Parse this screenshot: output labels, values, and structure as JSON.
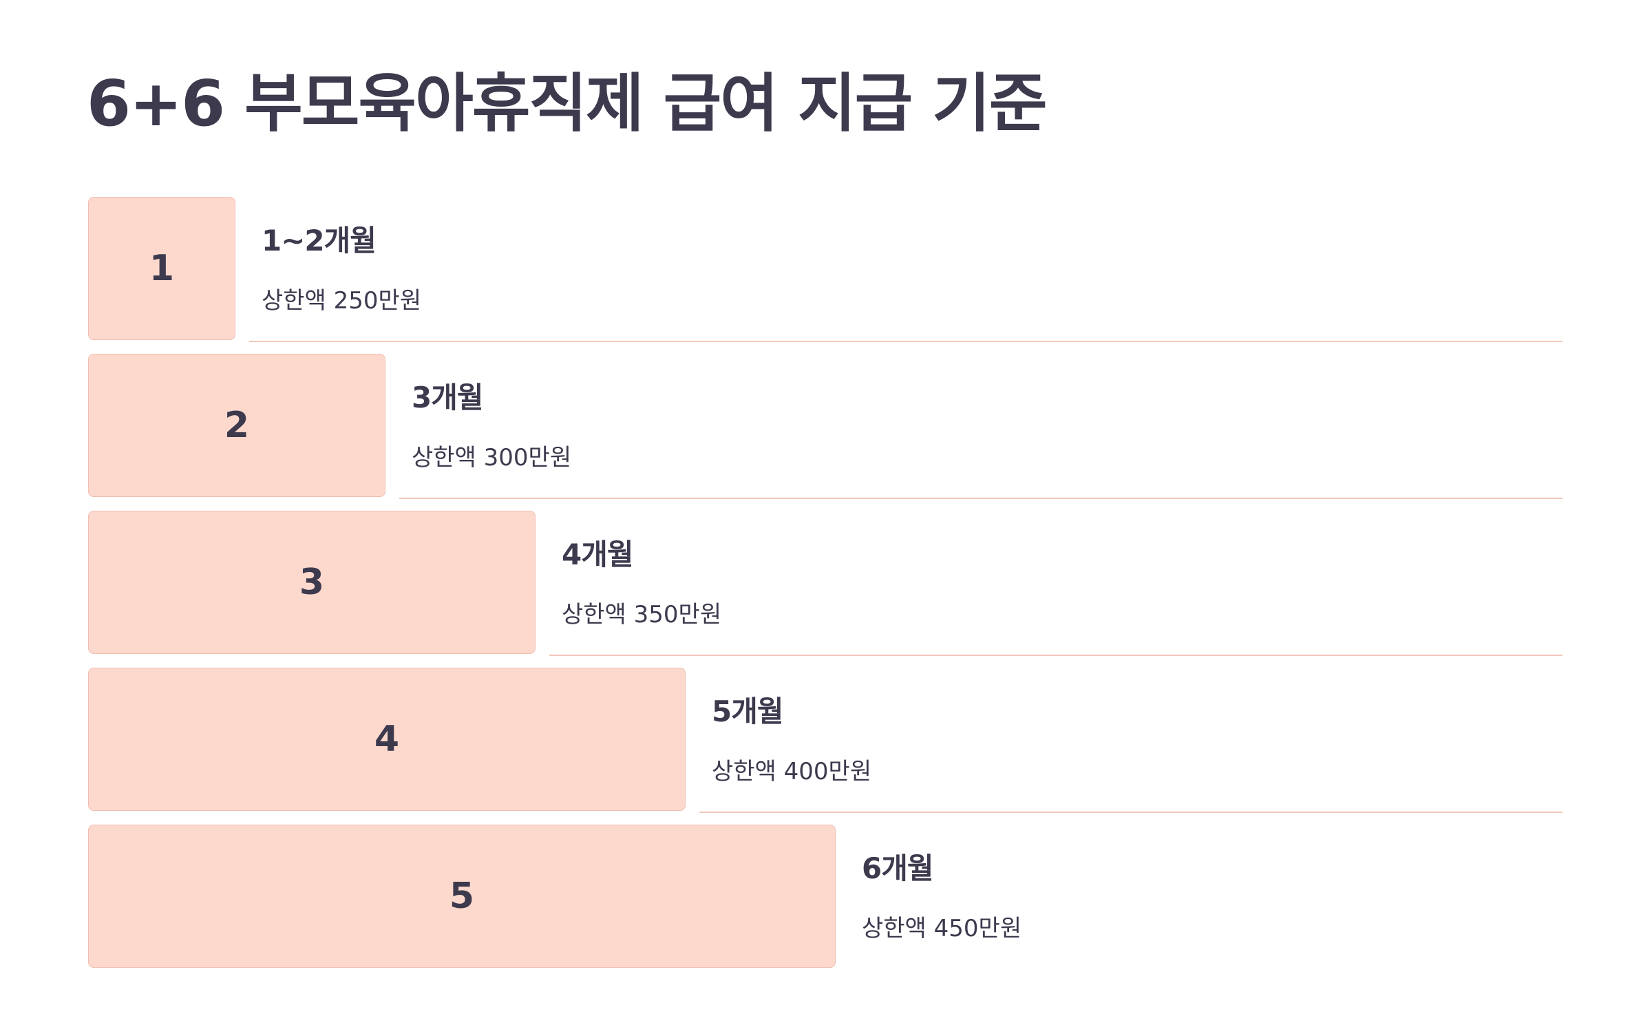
{
  "title": "6+6 부모육아휴직제 급여 지급 기준",
  "steps": [
    {
      "number": "1",
      "period": "1~2개월",
      "amount": "상한액 250만원"
    },
    {
      "number": "2",
      "period": "3개월",
      "amount": "상한액 300만원"
    },
    {
      "number": "3",
      "period": "4개월",
      "amount": "상한액 350만원"
    },
    {
      "number": "4",
      "period": "5개월",
      "amount": "상한액 400만원"
    },
    {
      "number": "5",
      "period": "6개월",
      "amount": "상한액 450만원"
    }
  ],
  "colors": {
    "box_fill": "#fdd9cd",
    "box_border": "#efbfb1",
    "divider": "#f2c7bb",
    "text": "#3d3a4e"
  }
}
